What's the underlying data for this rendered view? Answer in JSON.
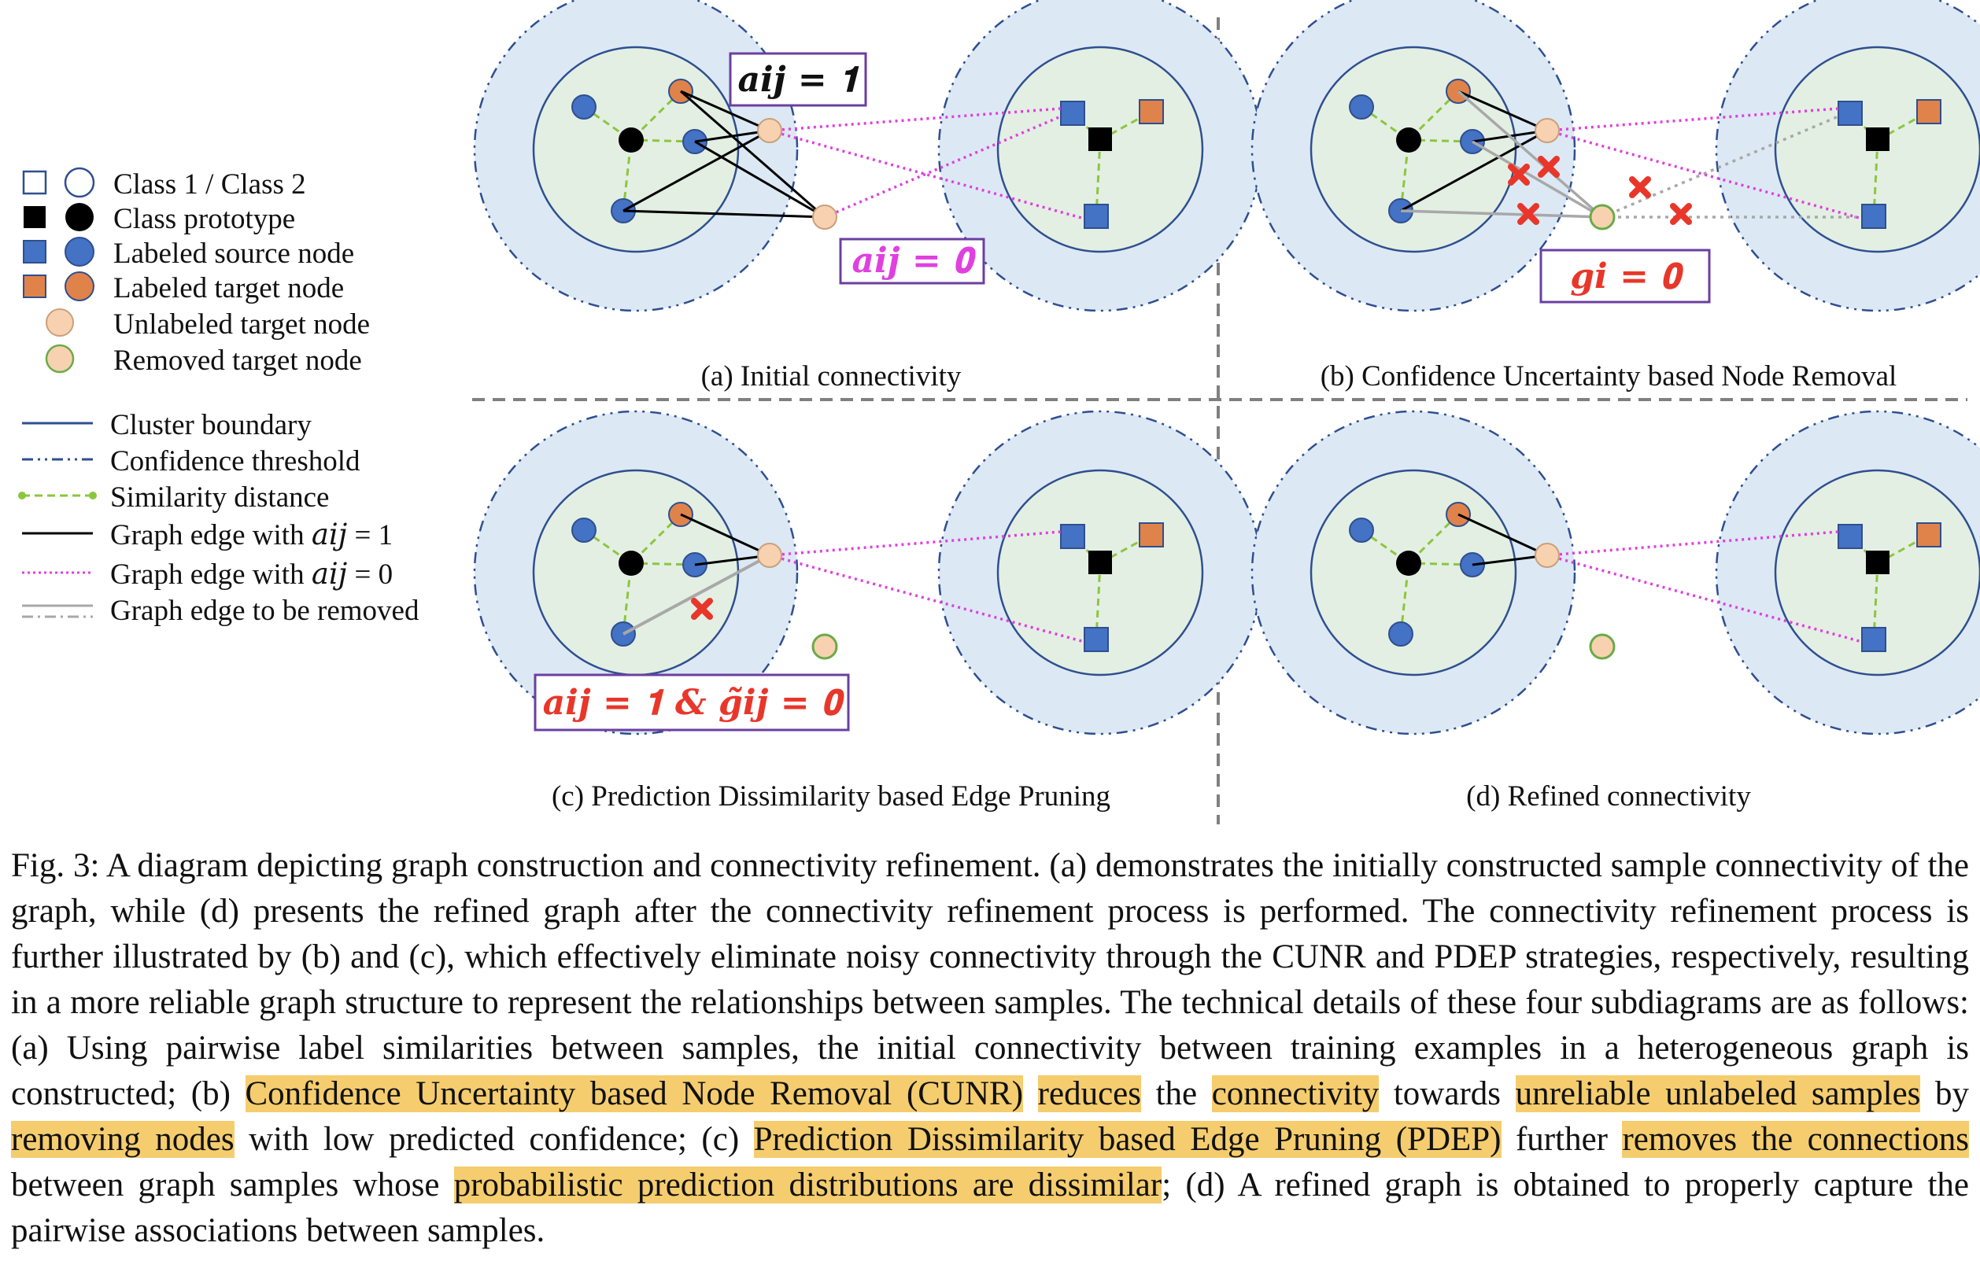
{
  "legend": {
    "items": [
      {
        "label": "Class 1 / Class 2"
      },
      {
        "label": "Class prototype"
      },
      {
        "label": "Labeled source node"
      },
      {
        "label": "Labeled target node"
      },
      {
        "label": "Unlabeled target node"
      },
      {
        "label": "Removed target node"
      },
      {
        "label": "Cluster boundary"
      },
      {
        "label": "Confidence threshold"
      },
      {
        "label": "Similarity distance"
      },
      {
        "label": "Graph edge with 𝑎𝑖𝑗 = 1"
      },
      {
        "label": "Graph edge with 𝑎𝑖𝑗 = 0"
      },
      {
        "label": "Graph edge to be removed"
      }
    ]
  },
  "panels": [
    {
      "id": "a",
      "caption": "(a) Initial connectivity"
    },
    {
      "id": "b",
      "caption": "(b) Confidence Uncertainty based Node Removal"
    },
    {
      "id": "c",
      "caption": "(c) Prediction Dissimilarity based Edge Pruning"
    },
    {
      "id": "d",
      "caption": "(d) Refined connectivity"
    }
  ],
  "annotations": {
    "a_one": "𝒂𝒊𝒋 = 𝟏",
    "a_zero": "𝒂𝒊𝒋 = 𝟎",
    "g_zero": "𝒈𝒊 = 𝟎",
    "a_g": "𝒂𝒊𝒋 = 𝟏 & 𝒈̃𝒊𝒋 = 𝟎"
  },
  "colors": {
    "source_blue": "#4472c4",
    "target_orange": "#e0834a",
    "unlabeled_peach": "#f8d2b0",
    "removed_green": "#6aaa48",
    "outer_fill": "#dce9f5",
    "inner_fill": "#e3efe3",
    "boundary": "#2f4f8f",
    "similarity": "#8cc63f",
    "edge_zero": "#e040e0",
    "edge_removed": "#a8a8a8",
    "cross": "#e8372a",
    "box_border": "#6b3fa0",
    "highlight": "#f5cd6e"
  },
  "caption": {
    "p1": "Fig. 3: A diagram depicting graph construction and connectivity refinement. (a) demonstrates the initially constructed sample connectivity of the graph, while (d) presents the refined graph after the connectivity refinement process is performed. The connectivity refinement process is further illustrated by (b) and (c), which effectively eliminate noisy connectivity through the CUNR and PDEP strategies, respectively, resulting in a more reliable graph structure to represent the relationships between samples. The technical details of these four subdiagrams are as follows: (a) Using pairwise label similarities between samples, the initial connectivity between training examples in a heterogeneous graph is constructed; (b) ",
    "h1": "Confidence Uncertainty based Node Removal (CUNR)",
    "s1": " ",
    "h2": "reduces",
    "s2": " the ",
    "h3": "connectivity",
    "s3": " towards ",
    "h4": "unreliable unlabeled samples",
    "s4": " by ",
    "h5": "removing nodes",
    "s5": " with low predicted confidence; (c) ",
    "h6": "Prediction Dissimilarity based Edge Pruning (PDEP)",
    "s6": " further ",
    "h7": "removes the connections",
    "s7": " between graph samples whose ",
    "h8": "probabilistic prediction distributions are dissimilar",
    "s8": "; (d) A refined graph is obtained to properly capture the pairwise associations between samples."
  }
}
